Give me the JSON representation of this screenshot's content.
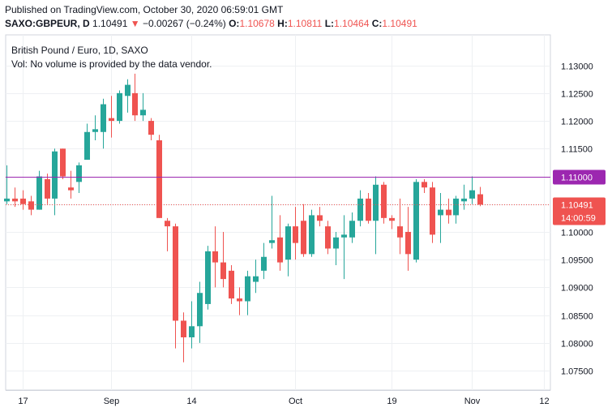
{
  "publish": {
    "line": "Published on TradingView.com, October 30, 2020 06:59:01 GMT"
  },
  "quote": {
    "symbol": "SAXO:GBPEUR, D",
    "last": "1.10491",
    "arrow": "▼",
    "change": "−0.00267 (−0.24%)",
    "open_label": "O:",
    "open": "1.10678",
    "high_label": "H:",
    "high": "1.10811",
    "low_label": "L:",
    "low": "1.10464",
    "close_label": "C:",
    "close": "1.10491"
  },
  "legend": {
    "title": "British Pound / Euro, 1D, SAXO",
    "volume_note": "Vol: No volume is provided by the data vendor."
  },
  "colors": {
    "up": "#26a69a",
    "down": "#ef5350",
    "hline": "#9c27b0",
    "grid": "#eef0f3",
    "axis_text": "#131722",
    "border": "#d1d4dc"
  },
  "chart_data": {
    "type": "candlestick",
    "title": "British Pound / Euro, 1D, SAXO",
    "ylim": [
      1.0715,
      1.1355
    ],
    "y_ticks": [
      "1.13000",
      "1.12500",
      "1.12000",
      "1.11500",
      "1.11000",
      "1.10500",
      "1.10000",
      "1.09500",
      "1.09000",
      "1.08500",
      "1.08000",
      "1.07500"
    ],
    "y_tick_values": [
      1.13,
      1.125,
      1.12,
      1.115,
      1.11,
      1.105,
      1.1,
      1.095,
      1.09,
      1.085,
      1.08,
      1.075
    ],
    "x_ticks": [
      {
        "label": "17",
        "index": 2
      },
      {
        "label": "Sep",
        "index": 13
      },
      {
        "label": "14",
        "index": 23
      },
      {
        "label": "Oct",
        "index": 36
      },
      {
        "label": "19",
        "index": 48
      },
      {
        "label": "Nov",
        "index": 58
      },
      {
        "label": "12",
        "index": 67
      }
    ],
    "horizontal_line": {
      "value": 1.11,
      "label": "1.11000"
    },
    "last_price": {
      "value": 1.10491,
      "label": "1.10491",
      "countdown": "14:00:59"
    },
    "candles": [
      {
        "o": 1.1055,
        "h": 1.112,
        "l": 1.105,
        "c": 1.106
      },
      {
        "o": 1.106,
        "h": 1.108,
        "l": 1.1045,
        "c": 1.1055
      },
      {
        "o": 1.106,
        "h": 1.1075,
        "l": 1.104,
        "c": 1.105
      },
      {
        "o": 1.1055,
        "h": 1.1065,
        "l": 1.103,
        "c": 1.104
      },
      {
        "o": 1.104,
        "h": 1.111,
        "l": 1.104,
        "c": 1.11
      },
      {
        "o": 1.1095,
        "h": 1.1105,
        "l": 1.105,
        "c": 1.106
      },
      {
        "o": 1.106,
        "h": 1.115,
        "l": 1.103,
        "c": 1.1145
      },
      {
        "o": 1.115,
        "h": 1.115,
        "l": 1.1095,
        "c": 1.11
      },
      {
        "o": 1.108,
        "h": 1.111,
        "l": 1.106,
        "c": 1.1075
      },
      {
        "o": 1.109,
        "h": 1.1125,
        "l": 1.107,
        "c": 1.112
      },
      {
        "o": 1.113,
        "h": 1.1195,
        "l": 1.113,
        "c": 1.118
      },
      {
        "o": 1.118,
        "h": 1.121,
        "l": 1.1165,
        "c": 1.1185
      },
      {
        "o": 1.118,
        "h": 1.124,
        "l": 1.115,
        "c": 1.123
      },
      {
        "o": 1.1205,
        "h": 1.1245,
        "l": 1.117,
        "c": 1.12
      },
      {
        "o": 1.12,
        "h": 1.1255,
        "l": 1.1195,
        "c": 1.125
      },
      {
        "o": 1.1245,
        "h": 1.1275,
        "l": 1.1215,
        "c": 1.1265
      },
      {
        "o": 1.125,
        "h": 1.1285,
        "l": 1.12,
        "c": 1.121
      },
      {
        "o": 1.121,
        "h": 1.125,
        "l": 1.12,
        "c": 1.122
      },
      {
        "o": 1.12,
        "h": 1.1205,
        "l": 1.1165,
        "c": 1.1175
      },
      {
        "o": 1.1165,
        "h": 1.1175,
        "l": 1.1025,
        "c": 1.1025
      },
      {
        "o": 1.102,
        "h": 1.1025,
        "l": 1.0965,
        "c": 1.101
      },
      {
        "o": 1.101,
        "h": 1.1015,
        "l": 1.079,
        "c": 1.084
      },
      {
        "o": 1.084,
        "h": 1.0855,
        "l": 1.0765,
        "c": 1.081
      },
      {
        "o": 1.081,
        "h": 1.0875,
        "l": 1.079,
        "c": 1.083
      },
      {
        "o": 1.083,
        "h": 1.091,
        "l": 1.08,
        "c": 1.089
      },
      {
        "o": 1.087,
        "h": 1.0975,
        "l": 1.086,
        "c": 1.0965
      },
      {
        "o": 1.0965,
        "h": 1.101,
        "l": 1.09,
        "c": 1.0945
      },
      {
        "o": 1.0945,
        "h": 1.1,
        "l": 1.09,
        "c": 1.0915
      },
      {
        "o": 1.093,
        "h": 1.094,
        "l": 1.087,
        "c": 1.088
      },
      {
        "o": 1.088,
        "h": 1.09,
        "l": 1.085,
        "c": 1.0875
      },
      {
        "o": 1.0875,
        "h": 1.093,
        "l": 1.085,
        "c": 1.092
      },
      {
        "o": 1.091,
        "h": 1.095,
        "l": 1.089,
        "c": 1.092
      },
      {
        "o": 1.093,
        "h": 1.098,
        "l": 1.0915,
        "c": 1.0955
      },
      {
        "o": 1.098,
        "h": 1.1065,
        "l": 1.097,
        "c": 1.0985
      },
      {
        "o": 1.099,
        "h": 1.103,
        "l": 1.093,
        "c": 1.0945
      },
      {
        "o": 1.095,
        "h": 1.1015,
        "l": 1.092,
        "c": 1.101
      },
      {
        "o": 1.101,
        "h": 1.1045,
        "l": 1.095,
        "c": 1.098
      },
      {
        "o": 1.102,
        "h": 1.105,
        "l": 1.0955,
        "c": 1.096
      },
      {
        "o": 1.096,
        "h": 1.104,
        "l": 1.0955,
        "c": 1.103
      },
      {
        "o": 1.103,
        "h": 1.1045,
        "l": 1.101,
        "c": 1.102
      },
      {
        "o": 1.101,
        "h": 1.102,
        "l": 1.096,
        "c": 1.097
      },
      {
        "o": 1.097,
        "h": 1.1,
        "l": 1.094,
        "c": 1.099
      },
      {
        "o": 1.099,
        "h": 1.103,
        "l": 1.0915,
        "c": 1.0995
      },
      {
        "o": 1.099,
        "h": 1.1035,
        "l": 1.098,
        "c": 1.102
      },
      {
        "o": 1.102,
        "h": 1.1075,
        "l": 1.101,
        "c": 1.106
      },
      {
        "o": 1.106,
        "h": 1.107,
        "l": 1.1015,
        "c": 1.102
      },
      {
        "o": 1.102,
        "h": 1.11,
        "l": 1.096,
        "c": 1.1085
      },
      {
        "o": 1.1085,
        "h": 1.109,
        "l": 1.1015,
        "c": 1.1025
      },
      {
        "o": 1.1025,
        "h": 1.103,
        "l": 1.1005,
        "c": 1.102
      },
      {
        "o": 1.101,
        "h": 1.106,
        "l": 1.096,
        "c": 1.099
      },
      {
        "o": 1.1,
        "h": 1.1045,
        "l": 1.093,
        "c": 1.096
      },
      {
        "o": 1.095,
        "h": 1.1095,
        "l": 1.0945,
        "c": 1.109
      },
      {
        "o": 1.109,
        "h": 1.1095,
        "l": 1.107,
        "c": 1.108
      },
      {
        "o": 1.108,
        "h": 1.109,
        "l": 1.098,
        "c": 1.0995
      },
      {
        "o": 1.103,
        "h": 1.107,
        "l": 1.098,
        "c": 1.104
      },
      {
        "o": 1.104,
        "h": 1.106,
        "l": 1.1015,
        "c": 1.103
      },
      {
        "o": 1.103,
        "h": 1.1065,
        "l": 1.1015,
        "c": 1.106
      },
      {
        "o": 1.1055,
        "h": 1.1085,
        "l": 1.104,
        "c": 1.106
      },
      {
        "o": 1.106,
        "h": 1.11,
        "l": 1.105,
        "c": 1.1075
      },
      {
        "o": 1.10678,
        "h": 1.10811,
        "l": 1.10464,
        "c": 1.10491
      }
    ]
  }
}
